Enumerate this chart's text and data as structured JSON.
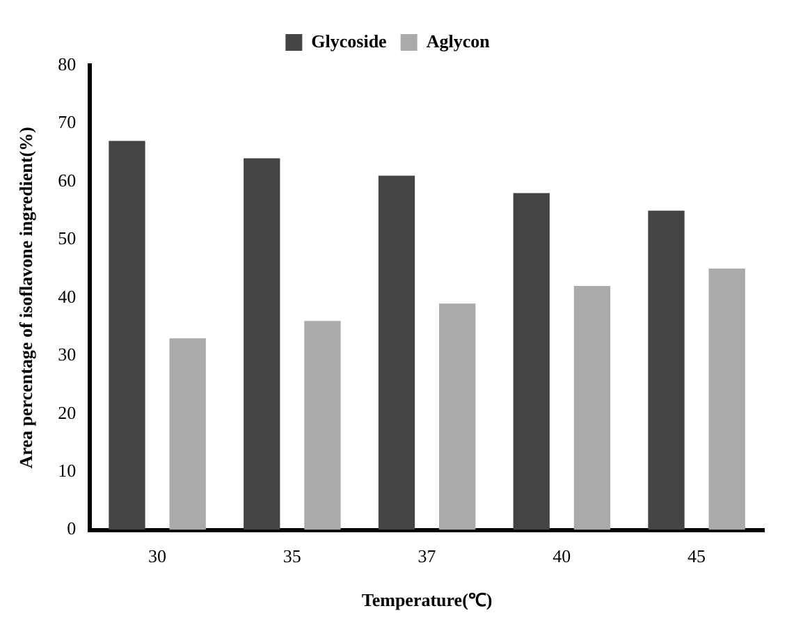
{
  "chart_data": {
    "type": "bar",
    "xlabel": "Temperature(℃)",
    "ylabel": "Area percentage of isoflavone ingredient(%)",
    "categories": [
      "30",
      "35",
      "37",
      "40",
      "45"
    ],
    "series": [
      {
        "name": "Glycoside",
        "color": "#444444",
        "values": [
          67,
          64,
          61,
          58,
          55
        ]
      },
      {
        "name": "Aglycon",
        "color": "#aaaaaa",
        "values": [
          33,
          36,
          39,
          42,
          45
        ]
      }
    ],
    "ylim": [
      0,
      80
    ],
    "yticks": [
      0,
      10,
      20,
      30,
      40,
      50,
      60,
      70,
      80
    ],
    "grid": false,
    "legend": "top"
  }
}
